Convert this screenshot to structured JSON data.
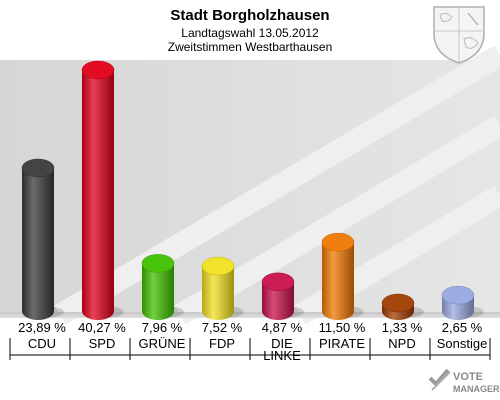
{
  "chart_data": {
    "type": "bar",
    "title": "Stadt Borgholzhausen",
    "subtitle": "Landtagswahl 13.05.2012",
    "subtitle2": "Zweitstimmen Westbarthausen",
    "categories": [
      "CDU",
      "SPD",
      "GRÜNE",
      "FDP",
      "DIE LINKE",
      "PIRATE",
      "NPD",
      "Sonstige"
    ],
    "values": [
      23.89,
      40.27,
      7.96,
      7.52,
      4.87,
      11.5,
      1.33,
      2.65
    ],
    "value_labels": [
      "23,89 %",
      "40,27 %",
      "7,96 %",
      "7,52 %",
      "4,87 %",
      "11,50 %",
      "1,33 %",
      "2,65 %"
    ],
    "category_lines": [
      [
        "CDU"
      ],
      [
        "SPD"
      ],
      [
        "GRÜNE"
      ],
      [
        "FDP"
      ],
      [
        "DIE",
        "LINKE"
      ],
      [
        "PIRATE"
      ],
      [
        "NPD"
      ],
      [
        "Sonstige"
      ]
    ],
    "colors": [
      "#3a3a3a",
      "#e0001a",
      "#40c000",
      "#f0e020",
      "#c8104a",
      "#f07800",
      "#a03c00",
      "#98a8e0"
    ],
    "ylim": [
      0,
      40.27
    ],
    "grid": false,
    "legend": "none"
  },
  "logo": {
    "brand_line1": "VOTE",
    "brand_line2": "MANAGER"
  }
}
